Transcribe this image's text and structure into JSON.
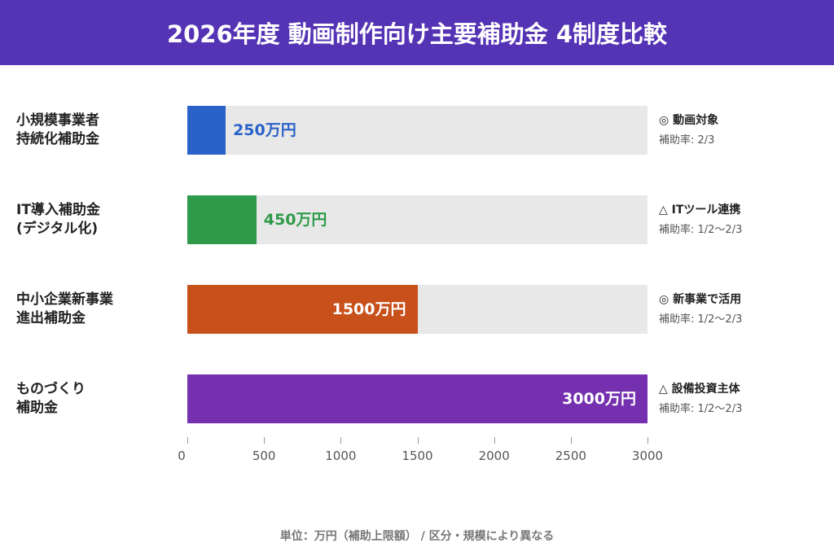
{
  "title": "2026年度 動画制作向け主要補助金 4制度比較",
  "chart_data": {
    "type": "bar",
    "orientation": "horizontal",
    "title": "2026年度 動画制作向け主要補助金 4制度比較",
    "categories": [
      "小規模事業者\n持続化補助金",
      "IT導入補助金\n(デジタル化)",
      "中小企業新事業\n進出補助金",
      "ものづくり\n補助金"
    ],
    "values": [
      250,
      450,
      1500,
      3000
    ],
    "value_labels": [
      "250万円",
      "450万円",
      "1500万円",
      "3000万円"
    ],
    "colors": [
      "#2a62c9",
      "#2e9a4a",
      "#c8501a",
      "#7530b0"
    ],
    "notes": [
      {
        "title": "◎ 動画対象",
        "rate": "補助率: 2/3"
      },
      {
        "title": "△ ITツール連携",
        "rate": "補助率: 1/2〜2/3"
      },
      {
        "title": "◎ 新事業で活用",
        "rate": "補助率: 1/2〜2/3"
      },
      {
        "title": "△ 設備投資主体",
        "rate": "補助率: 1/2〜2/3"
      }
    ],
    "xlim": [
      0,
      3000
    ],
    "xticks": [
      "0",
      "500",
      "1000",
      "1500",
      "2000",
      "2500",
      "3000"
    ],
    "grid": false,
    "footnote": "単位：万円（補助上限額） / 区分・規模により異なる"
  }
}
